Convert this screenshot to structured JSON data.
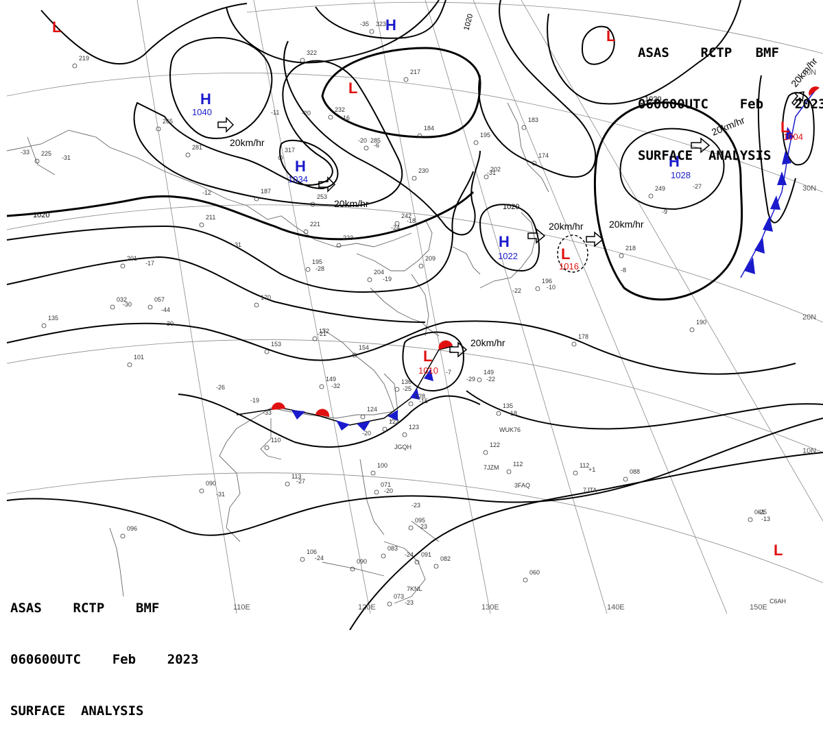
{
  "header_top_right": {
    "line1": "ASAS    RCTP   BMF",
    "line2": "060600UTC    Feb    2023",
    "line3": "SURFACE  ANALYSIS"
  },
  "header_bottom_left": {
    "line1": "ASAS    RCTP    BMF",
    "line2": "060600UTC    Feb    2023",
    "line3": "SURFACE  ANALYSIS"
  },
  "colors": {
    "high": "#1a1acc",
    "low": "#e01010",
    "cold_front": "#1a1acc",
    "warm_front": "#e01010",
    "isobar": "#000000",
    "coast": "#606060"
  },
  "longitude_labels": [
    "110E",
    "120E",
    "130E",
    "140E",
    "150E"
  ],
  "latitude_labels": [
    "40N",
    "30N",
    "20N",
    "10N"
  ],
  "isobar_labels": [
    "1020",
    "1020",
    "1020",
    "1020"
  ],
  "pressure_centers": [
    {
      "type": "H",
      "value": "1040"
    },
    {
      "type": "H",
      "value": "1034"
    },
    {
      "type": "H",
      "value": "1028"
    },
    {
      "type": "H",
      "value": "1022"
    },
    {
      "type": "H",
      "value": ""
    },
    {
      "type": "L",
      "value": ""
    },
    {
      "type": "L",
      "value": ""
    },
    {
      "type": "L",
      "value": ""
    },
    {
      "type": "L",
      "value": "1016"
    },
    {
      "type": "L",
      "value": "1010"
    },
    {
      "type": "L",
      "value": "1004"
    },
    {
      "type": "L",
      "value": ""
    }
  ],
  "motion_labels": [
    "20km/hr",
    "20km/hr",
    "20km/hr",
    "20km/hr",
    "20km/hr",
    "20km/hr",
    "20km/hr"
  ],
  "station_labels": [
    "219",
    "265",
    "225",
    "281",
    "317",
    "187",
    "211",
    "253",
    "221",
    "223",
    "195",
    "201",
    "057",
    "032",
    "135",
    "170",
    "172",
    "154",
    "153",
    "101",
    "149",
    "136",
    "128",
    "122",
    "123",
    "124",
    "110",
    "113",
    "090",
    "100",
    "071",
    "095",
    "091",
    "082",
    "090",
    "073",
    "106",
    "083",
    "096",
    "209",
    "204",
    "232",
    "184",
    "285",
    "230",
    "242",
    "195",
    "202",
    "183",
    "174",
    "196",
    "149",
    "135",
    "122",
    "112",
    "112",
    "088",
    "061",
    "060",
    "178",
    "190",
    "218",
    "249",
    "323",
    "322",
    "217",
    "-35",
    "-20",
    "-24",
    "-31",
    "-28",
    "-17",
    "-30",
    "-44",
    "-31",
    "-21",
    "-32",
    "-25",
    "-15",
    "-20",
    "-33",
    "-27",
    "-20",
    "-23",
    "-24",
    "-23",
    "-22",
    "-19",
    "-18",
    "-10",
    "-29",
    "-22",
    "-18",
    "-7",
    "-6",
    "-16",
    "-11",
    "-13",
    "+1",
    "-12",
    "-27",
    "-24",
    "-20",
    "-31",
    "-30",
    "-33",
    "-26",
    "-23",
    "-25",
    "-19",
    "-31",
    "-9",
    "-8",
    "WUK76",
    "7JZM",
    "3FAQ",
    "7JTA",
    "JGQH",
    "7KNL",
    "C6AH"
  ]
}
